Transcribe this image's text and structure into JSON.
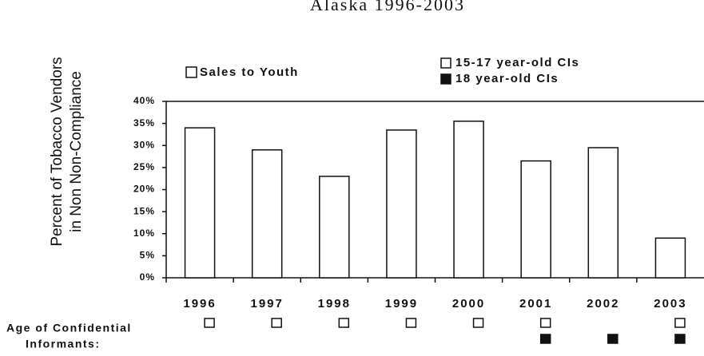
{
  "chart_data": {
    "type": "bar",
    "title": "Alaska 1996-2003",
    "y_label_lines": [
      "Percent of Tobacco Vendors",
      "in Non Non-Compliance"
    ],
    "series_name": "Sales to Youth",
    "categories": [
      "1996",
      "1997",
      "1998",
      "1999",
      "2000",
      "2001",
      "2002",
      "2003"
    ],
    "values": [
      34,
      29,
      23,
      33.5,
      35.5,
      26.5,
      29.5,
      9
    ],
    "color": "#ffffff",
    "ylim": [
      0,
      40
    ],
    "yticks": [
      {
        "value": 0,
        "label": "0%"
      },
      {
        "value": 5,
        "label": "5%"
      },
      {
        "value": 10,
        "label": "10%"
      },
      {
        "value": 15,
        "label": "15%"
      },
      {
        "value": 20,
        "label": "20%"
      },
      {
        "value": 25,
        "label": "25%"
      },
      {
        "value": 30,
        "label": "30%"
      },
      {
        "value": 35,
        "label": "35%"
      },
      {
        "value": 40,
        "label": "40%"
      }
    ],
    "informants": {
      "label_lines": [
        "Age of Confidential",
        "Informants:"
      ],
      "groups": [
        {
          "name": "15-17 year-old CIs",
          "filled": false,
          "present": [
            true,
            true,
            true,
            true,
            true,
            true,
            false,
            true
          ]
        },
        {
          "name": "18 year-old CIs",
          "filled": true,
          "present": [
            false,
            false,
            false,
            false,
            false,
            true,
            true,
            true
          ]
        }
      ]
    }
  }
}
